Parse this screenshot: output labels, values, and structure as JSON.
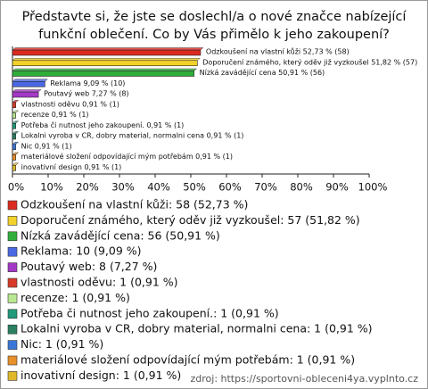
{
  "chart_data": {
    "type": "bar",
    "orientation": "horizontal",
    "title": "Představte si, že jste se doslechl/a o nové značce nabízející funkční oblečení. Co by Vás přimělo k jeho zakoupení?",
    "values": [
      52.73,
      51.82,
      50.91,
      9.09,
      7.27,
      0.91,
      0.91,
      0.91,
      0.91,
      0.91,
      0.91,
      0.91
    ],
    "value_labels": [
      "Odzkoušení na vlastní kůži 52,73 % (58)",
      "Doporučení známého, který oděv již vyzkoušel 51,82 % (57)",
      "Nízká zavádějící cena 50,91 % (56)",
      "Reklama 9,09 % (10)",
      "Poutavý web 7,27 % (8)",
      "vlastnosti oděvu 0,91 % (1)",
      "recenze 0,91 % (1)",
      "Potřeba či nutnost jeho zakoupení. 0,91 % (1)",
      "Lokalni vyroba v CR, dobry material, normalni cena 0,91 % (1)",
      "Nic 0,91 % (1)",
      "materiálové složení odpovídající mým potřebám 0,91 % (1)",
      "inovativní design 0,91 % (1)"
    ],
    "legend": [
      "Odzkoušení na vlastní kůži: 58 (52,73 %)",
      "Doporučení známého, který oděv již vyzkoušel: 57 (51,82 %)",
      "Nízká zavádějící cena: 56 (50,91 %)",
      "Reklama: 10 (9,09 %)",
      "Poutavý web: 8 (7,27 %)",
      "vlastnosti oděvu: 1 (0,91 %)",
      "recenze: 1 (0,91 %)",
      "Potřeba či nutnost jeho zakoupení.: 1 (0,91 %)",
      "Lokalni vyroba v CR, dobry material, normalni cena: 1 (0,91 %)",
      "Nic: 1 (0,91 %)",
      "materiálové složení odpovídající mým potřebám: 1 (0,91 %)",
      "inovativní design: 1 (0,91 %)"
    ],
    "colors": [
      "#dc2a20",
      "#f2d22a",
      "#2fae3a",
      "#4a68e2",
      "#a438c6",
      "#d83a28",
      "#b8e890",
      "#1f9a7a",
      "#2a8060",
      "#3a78d8",
      "#e8902a",
      "#e0b82a"
    ],
    "xlim": [
      0,
      100
    ],
    "xticks": [
      {
        "value": 0,
        "label": "0%"
      },
      {
        "value": 10,
        "label": "10%"
      },
      {
        "value": 20,
        "label": "20%"
      },
      {
        "value": 30,
        "label": "30%"
      },
      {
        "value": 40,
        "label": "40%"
      },
      {
        "value": 50,
        "label": "50%"
      },
      {
        "value": 60,
        "label": "60%"
      },
      {
        "value": 70,
        "label": "70%"
      },
      {
        "value": 80,
        "label": "80%"
      },
      {
        "value": 90,
        "label": "90%"
      },
      {
        "value": 100,
        "label": "100%"
      }
    ],
    "source": "zdroj: https://sportovni-obleceni4ya.vyplnto.cz"
  }
}
